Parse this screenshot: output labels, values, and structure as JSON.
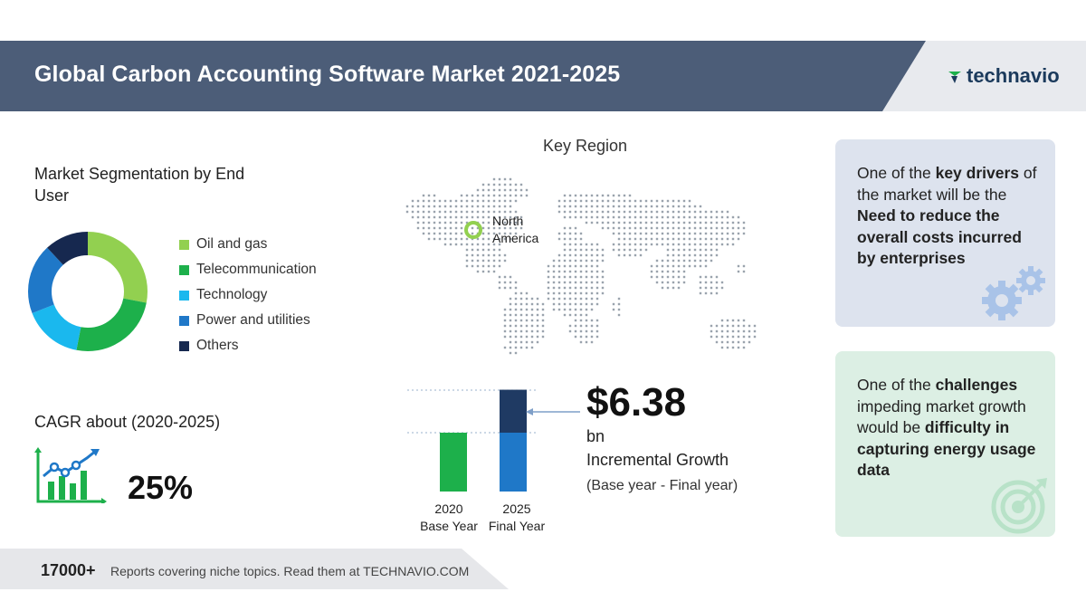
{
  "header": {
    "title": "Global Carbon Accounting Software Market 2021-2025",
    "logo_text": "technavio"
  },
  "segmentation": {
    "title": "Market Segmentation by End User",
    "items": [
      {
        "label": "Oil and gas",
        "color": "#92d050",
        "share": 0.28
      },
      {
        "label": "Telecommunication",
        "color": "#1db04b",
        "share": 0.25
      },
      {
        "label": "Technology",
        "color": "#1ab8ee",
        "share": 0.16
      },
      {
        "label": "Power and utilities",
        "color": "#1f78c8",
        "share": 0.19
      },
      {
        "label": "Others",
        "color": "#16284f",
        "share": 0.12
      }
    ]
  },
  "cagr": {
    "label": "CAGR about (2020-2025)",
    "value": "25%"
  },
  "region": {
    "title": "Key Region",
    "highlight": "North America"
  },
  "growth": {
    "value": "$6.38",
    "unit": "bn",
    "label": "Incremental Growth",
    "period": "(Base year - Final year)",
    "bars": [
      {
        "year": "2020",
        "caption": "Base Year",
        "base": 1.0,
        "increment": 0
      },
      {
        "year": "2025",
        "caption": "Final Year",
        "base": 1.0,
        "increment": 0.73
      }
    ]
  },
  "drivers": {
    "prefix": "One of the ",
    "bold1": "key drivers",
    "middle": " of the market will be the ",
    "bold2": "Need to reduce the overall costs incurred by enterprises"
  },
  "challenges": {
    "prefix": "One of the ",
    "bold1": "challenges",
    "middle": " impeding market growth would be ",
    "bold2": "difficulty in capturing energy usage data"
  },
  "footer": {
    "count": "17000+",
    "text": "Reports covering niche topics. Read them at TECHNAVIO.COM"
  },
  "icons": {
    "gears": "gears-icon",
    "target": "target-icon",
    "growth_chart": "growth-chart-icon"
  }
}
